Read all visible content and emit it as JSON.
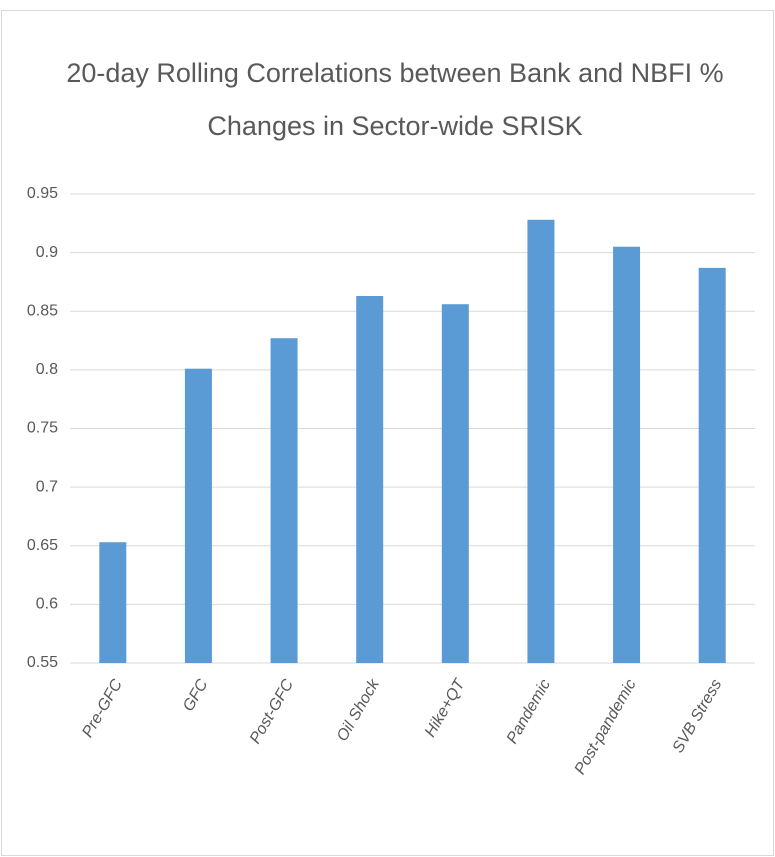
{
  "chart_data": {
    "type": "bar",
    "title": [
      "20-day Rolling Correlations between Bank and NBFI %",
      "Changes in Sector-wide SRISK"
    ],
    "categories": [
      "Pre-GFC",
      "GFC",
      "Post-GFC",
      "Oil Shock",
      "Hike+QT",
      "Pandemic",
      "Post-pandemic",
      "SVB Stress"
    ],
    "values": [
      0.653,
      0.801,
      0.827,
      0.863,
      0.856,
      0.928,
      0.905,
      0.887
    ],
    "color": "#5b9bd5",
    "ylim": [
      0.55,
      0.95
    ],
    "yticks": [
      0.55,
      0.6,
      0.65,
      0.7,
      0.75,
      0.8,
      0.85,
      0.9,
      0.95
    ],
    "grid": true
  }
}
